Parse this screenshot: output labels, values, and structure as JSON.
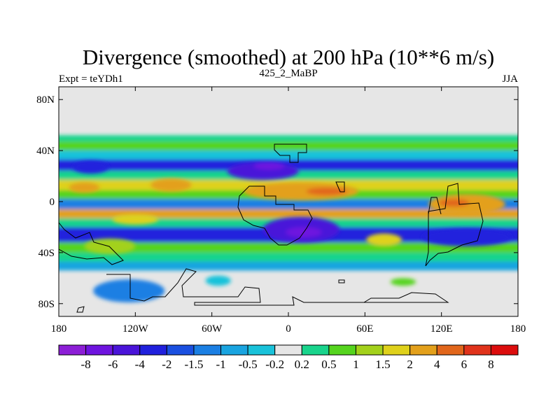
{
  "chart_data": {
    "type": "heatmap",
    "title": "Divergence (smoothed) at 200 hPa (10**6 m/s)",
    "subtitle_left": "Expt = teYDh1",
    "subtitle_center": "425_2_MaBP",
    "subtitle_right": "JJA",
    "x_ticks": [
      {
        "value": -180,
        "label": "180"
      },
      {
        "value": -120,
        "label": "120W"
      },
      {
        "value": -60,
        "label": "60W"
      },
      {
        "value": 0,
        "label": "0"
      },
      {
        "value": 60,
        "label": "60E"
      },
      {
        "value": 120,
        "label": "120E"
      },
      {
        "value": 180,
        "label": "180"
      }
    ],
    "y_ticks": [
      {
        "value": 80,
        "label": "80N"
      },
      {
        "value": 40,
        "label": "40N"
      },
      {
        "value": 0,
        "label": "0"
      },
      {
        "value": -40,
        "label": "40S"
      },
      {
        "value": -80,
        "label": "80S"
      }
    ],
    "xlim": [
      -180,
      180
    ],
    "ylim": [
      -90,
      90
    ],
    "colorbar": {
      "labels": [
        "-8",
        "-6",
        "-4",
        "-2",
        "-1.5",
        "-1",
        "-0.5",
        "-0.2",
        "0.2",
        "0.5",
        "1",
        "1.5",
        "2",
        "4",
        "6",
        "8"
      ],
      "colors": [
        "#8c1ed6",
        "#6e14df",
        "#4a14d9",
        "#2020dd",
        "#1a4fe0",
        "#1b7fe3",
        "#19a4e0",
        "#19c2da",
        "#e6e6e6",
        "#19d48c",
        "#55d41e",
        "#a3d11b",
        "#dfd11b",
        "#e3a01b",
        "#e1661b",
        "#e0331b",
        "#dc0d0d"
      ]
    },
    "bands": [
      {
        "lat_top": 52,
        "lat_bot": 47,
        "value": 0.5,
        "color": "#19d48c"
      },
      {
        "lat_top": 47,
        "lat_bot": 40,
        "value": 1,
        "color": "#55d41e"
      },
      {
        "lat_top": 40,
        "lat_bot": 33,
        "value": -0.2,
        "color": "#19c2da"
      },
      {
        "lat_top": 33,
        "lat_bot": 24,
        "value": -2,
        "color": "#2020dd"
      },
      {
        "lat_top": 24,
        "lat_bot": 17,
        "value": 0.5,
        "color": "#19d48c"
      },
      {
        "lat_top": 17,
        "lat_bot": 9,
        "value": 2,
        "color": "#dfd11b"
      },
      {
        "lat_top": 9,
        "lat_bot": 2,
        "value": 1,
        "color": "#55d41e"
      },
      {
        "lat_top": 2,
        "lat_bot": -6,
        "value": -1,
        "color": "#1b7fe3"
      },
      {
        "lat_top": -6,
        "lat_bot": -13,
        "value": 4,
        "color": "#e3a01b"
      },
      {
        "lat_top": -13,
        "lat_bot": -20,
        "value": 0.5,
        "color": "#19d48c"
      },
      {
        "lat_top": -20,
        "lat_bot": -32,
        "value": -2,
        "color": "#2020dd"
      },
      {
        "lat_top": -32,
        "lat_bot": -40,
        "value": 1,
        "color": "#55d41e"
      },
      {
        "lat_top": -40,
        "lat_bot": -47,
        "value": 0.5,
        "color": "#19d48c"
      },
      {
        "lat_top": -47,
        "lat_bot": -54,
        "value": -0.5,
        "color": "#19a4e0"
      }
    ],
    "blobs": [
      {
        "lon": -155,
        "lat": 27,
        "rx": 14,
        "ry": 5,
        "color": "#2020dd"
      },
      {
        "lon": -160,
        "lat": 11,
        "rx": 12,
        "ry": 4,
        "color": "#e3a01b"
      },
      {
        "lon": -92,
        "lat": 13,
        "rx": 16,
        "ry": 5,
        "color": "#e3a01b"
      },
      {
        "lon": -20,
        "lat": 24,
        "rx": 28,
        "ry": 7,
        "color": "#4a14d9"
      },
      {
        "lon": -15,
        "lat": 28,
        "rx": 12,
        "ry": 3,
        "color": "#6e14df"
      },
      {
        "lon": 10,
        "lat": 8,
        "rx": 45,
        "ry": 7,
        "color": "#e3a01b"
      },
      {
        "lon": 30,
        "lat": 8,
        "rx": 16,
        "ry": 3,
        "color": "#e1661b"
      },
      {
        "lon": 140,
        "lat": -2,
        "rx": 30,
        "ry": 8,
        "color": "#e3a01b"
      },
      {
        "lon": 130,
        "lat": -1,
        "rx": 12,
        "ry": 3,
        "color": "#e1661b"
      },
      {
        "lon": -120,
        "lat": -14,
        "rx": 18,
        "ry": 4,
        "color": "#dfd11b"
      },
      {
        "lon": 10,
        "lat": -22,
        "rx": 30,
        "ry": 10,
        "color": "#4a14d9"
      },
      {
        "lon": 12,
        "lat": -24,
        "rx": 14,
        "ry": 4,
        "color": "#6e14df"
      },
      {
        "lon": -140,
        "lat": -35,
        "rx": 20,
        "ry": 6,
        "color": "#a3d11b"
      },
      {
        "lon": 75,
        "lat": -30,
        "rx": 14,
        "ry": 5,
        "color": "#dfd11b"
      },
      {
        "lon": 140,
        "lat": -28,
        "rx": 35,
        "ry": 7,
        "color": "#2020dd"
      },
      {
        "lon": -125,
        "lat": -70,
        "rx": 28,
        "ry": 9,
        "color": "#1b7fe3"
      },
      {
        "lon": -55,
        "lat": -62,
        "rx": 10,
        "ry": 4,
        "color": "#19c2da"
      },
      {
        "lon": 90,
        "lat": -63,
        "rx": 10,
        "ry": 3,
        "color": "#55d41e"
      }
    ]
  }
}
